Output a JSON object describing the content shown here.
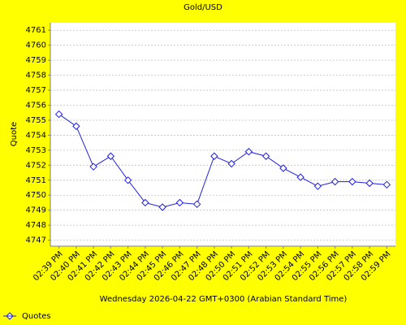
{
  "chart_data": {
    "type": "line",
    "title": "Gold/USD",
    "x_label": "Wednesday 2026-04-22 GMT+0300 (Arabian Standard Time)",
    "y_label": "Quote",
    "categories": [
      "02:39 PM",
      "02:40 PM",
      "02:41 PM",
      "02:42 PM",
      "02:43 PM",
      "02:44 PM",
      "02:45 PM",
      "02:46 PM",
      "02:47 PM",
      "02:48 PM",
      "02:50 PM",
      "02:51 PM",
      "02:52 PM",
      "02:53 PM",
      "02:54 PM",
      "02:55 PM",
      "02:56 PM",
      "02:57 PM",
      "02:58 PM",
      "02:59 PM"
    ],
    "series": [
      {
        "name": "Quotes",
        "color": "#2020e0",
        "values": [
          4755.4,
          4754.6,
          4751.9,
          4752.6,
          4751.0,
          4749.5,
          4749.2,
          4749.5,
          4749.4,
          4752.6,
          4752.1,
          4752.9,
          4752.6,
          4751.8,
          4751.2,
          4750.6,
          4750.9,
          4750.9,
          4750.8,
          4750.7
        ]
      }
    ],
    "ylim": [
      4746.6,
      4761.5
    ],
    "yticks": [
      4747,
      4748,
      4749,
      4750,
      4751,
      4752,
      4753,
      4754,
      4755,
      4756,
      4757,
      4758,
      4759,
      4760,
      4761
    ],
    "grid": true,
    "legend": "bottom-left"
  }
}
